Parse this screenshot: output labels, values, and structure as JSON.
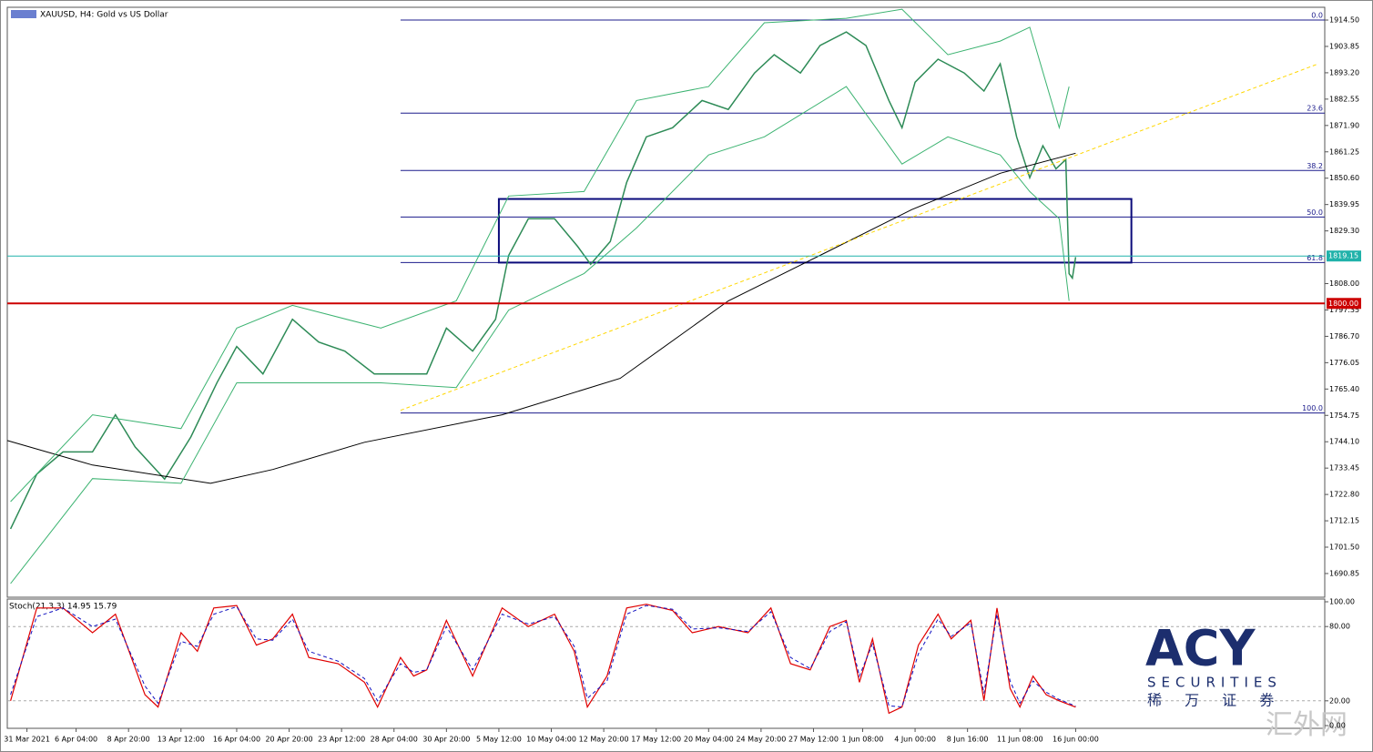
{
  "chart_data": [
    {
      "type": "line",
      "title": "XAUUSD, H4:  Gold vs US Dollar",
      "xlim": [
        0,
        402
      ],
      "xticks": [
        {
          "value": 6,
          "label": "31 Mar 2021"
        },
        {
          "value": 21,
          "label": "6 Apr 04:00"
        },
        {
          "value": 37,
          "label": "8 Apr 20:00"
        },
        {
          "value": 53,
          "label": "13 Apr 12:00"
        },
        {
          "value": 70,
          "label": "16 Apr 04:00"
        },
        {
          "value": 86,
          "label": "20 Apr 20:00"
        },
        {
          "value": 102,
          "label": "23 Apr 12:00"
        },
        {
          "value": 118,
          "label": "28 Apr 04:00"
        },
        {
          "value": 134,
          "label": "30 Apr 20:00"
        },
        {
          "value": 150,
          "label": "5 May 12:00"
        },
        {
          "value": 166,
          "label": "10 May 04:00"
        },
        {
          "value": 182,
          "label": "12 May 20:00"
        },
        {
          "value": 198,
          "label": "17 May 12:00"
        },
        {
          "value": 214,
          "label": "20 May 04:00"
        },
        {
          "value": 230,
          "label": "24 May 20:00"
        },
        {
          "value": 246,
          "label": "27 May 12:00"
        },
        {
          "value": 261,
          "label": "1 Jun 08:00"
        },
        {
          "value": 277,
          "label": "4 Jun 00:00"
        },
        {
          "value": 293,
          "label": "8 Jun 16:00"
        },
        {
          "value": 309,
          "label": "11 Jun 08:00"
        },
        {
          "value": 326,
          "label": "16 Jun 00:00"
        }
      ],
      "ylim": [
        1681.27,
        1919.66
      ],
      "yticks": [
        {
          "value": 1914.5,
          "label": "1914.50"
        },
        1903.85,
        {
          "value": 1893.2,
          "label": "1893.20"
        },
        1882.55,
        {
          "value": 1871.9,
          "label": "1871.90"
        },
        1861.25,
        {
          "value": 1850.6,
          "label": "1850.60"
        },
        1839.95,
        {
          "value": 1829.3,
          "label": "1829.30"
        },
        {
          "value": 1808,
          "label": "1808.00"
        },
        1797.35,
        {
          "value": 1786.7,
          "label": "1786.70"
        },
        1776.05,
        {
          "value": 1765.4,
          "label": "1765.40"
        },
        1754.75,
        {
          "value": 1744.1,
          "label": "1744.10"
        },
        1733.45,
        {
          "value": 1722.8,
          "label": "1722.80"
        },
        1712.15,
        {
          "value": 1701.5,
          "label": "1701.50"
        },
        1690.85
      ],
      "series": [
        {
          "color": "#2e8b57",
          "width": 1.5,
          "x": [
            1,
            9,
            17,
            26,
            33,
            39,
            48,
            56,
            64,
            70,
            78,
            87,
            95,
            103,
            112,
            120,
            128,
            134,
            142,
            149,
            153,
            159,
            167,
            174,
            178,
            184,
            189,
            195,
            203,
            212,
            220,
            228,
            234,
            242,
            248,
            256,
            262,
            269,
            273,
            277,
            284,
            292,
            298,
            303,
            308,
            312,
            316,
            320,
            323,
            324,
            325,
            326
          ],
          "values": [
            1708.9,
            1731,
            1740,
            1740,
            1755,
            1742,
            1729,
            1746,
            1768,
            1782.6,
            1771.5,
            1793.6,
            1784.4,
            1780.7,
            1771.5,
            1771.5,
            1771.5,
            1790,
            1780.7,
            1793.6,
            1819.4,
            1834.2,
            1834.2,
            1823.1,
            1815.8,
            1825,
            1848.9,
            1867.3,
            1871,
            1882,
            1878.4,
            1893.1,
            1900.5,
            1893.1,
            1904.2,
            1909.7,
            1904.2,
            1882,
            1871,
            1889.4,
            1898.7,
            1893.1,
            1885.8,
            1896.8,
            1867.3,
            1850.8,
            1863.7,
            1854.4,
            1858.1,
            1812,
            1810.2,
            1818.7
          ]
        },
        {
          "color": "#000000",
          "width": 1,
          "x": [
            0,
            26,
            62,
            81,
            109,
            151,
            187,
            220,
            248,
            276,
            303,
            326
          ],
          "values": [
            1744.6,
            1734.7,
            1727.3,
            1732.9,
            1743.9,
            1755,
            1769.7,
            1801,
            1819.4,
            1837.9,
            1852.6,
            1860.7
          ]
        },
        {
          "color": "#3cb371",
          "width": 1,
          "x": [
            1,
            26,
            53,
            70,
            87,
            114,
            137,
            153,
            176,
            192,
            214,
            231,
            256,
            273,
            287,
            303,
            312,
            321,
            324
          ],
          "values": [
            1719.9,
            1755,
            1749.4,
            1790,
            1799.2,
            1790,
            1801,
            1843.4,
            1845.2,
            1882,
            1887.6,
            1913.4,
            1915.2,
            1918.9,
            1900.5,
            1906,
            1911.6,
            1871,
            1887.6
          ]
        },
        {
          "color": "#3cb371",
          "width": 1,
          "x": [
            1,
            26,
            53,
            70,
            87,
            114,
            137,
            153,
            176,
            192,
            214,
            231,
            256,
            273,
            287,
            303,
            312,
            321,
            324
          ],
          "values": [
            1686.8,
            1729.2,
            1727.3,
            1767.9,
            1767.9,
            1767.9,
            1766,
            1797.3,
            1812.1,
            1830.5,
            1860,
            1867.3,
            1887.6,
            1856.3,
            1867.3,
            1860,
            1845.2,
            1834.2,
            1801
          ]
        },
        {
          "color": "#ffd700",
          "width": 1,
          "dashed": true,
          "x": [
            120,
            400
          ],
          "values": [
            1756.8,
            1896.8
          ]
        }
      ],
      "fib_color": "#1c1c8c",
      "fib_start": 120,
      "fib_levels": [
        {
          "label": "0.0",
          "value": 1914.5
        },
        {
          "label": "23.6",
          "value": 1876.9
        },
        {
          "label": "38.2",
          "value": 1853.7
        },
        {
          "label": "50.0",
          "value": 1834.9
        },
        {
          "label": "61.8",
          "value": 1816.5
        },
        {
          "label": "100.0",
          "value": 1755.7
        }
      ],
      "box": {
        "x": [
          150,
          343
        ],
        "y": [
          1816.5,
          1842.2
        ],
        "color": "#0a0a7a"
      },
      "price_lines": [
        {
          "value": 1819.15,
          "label": "1819.15",
          "color": "#20b2aa"
        },
        {
          "value": 1800,
          "label": "1800.00",
          "color": "#cc0000"
        }
      ]
    },
    {
      "type": "line",
      "title": "Stoch(21,3,3) 14.95 15.79",
      "xlim": [
        0,
        402
      ],
      "ylim": [
        -2.2,
        102.2
      ],
      "yticks": [
        {
          "value": 100,
          "label": "100.00"
        },
        {
          "value": 80,
          "label": "80.00"
        },
        {
          "value": 20,
          "label": "20.00"
        },
        {
          "value": 0,
          "label": "0.00"
        }
      ],
      "levels": [
        80,
        20
      ],
      "series": [
        {
          "color": "#e00000",
          "width": 1.2,
          "x": [
            1,
            9,
            17,
            26,
            33,
            42,
            46,
            53,
            58,
            63,
            70,
            76,
            81,
            87,
            92,
            101,
            109,
            113,
            120,
            124,
            128,
            134,
            142,
            151,
            159,
            167,
            173,
            177,
            183,
            189,
            195,
            203,
            209,
            217,
            226,
            233,
            239,
            245,
            251,
            256,
            260,
            264,
            269,
            273,
            278,
            284,
            288,
            294,
            298,
            302,
            306,
            309,
            313,
            317,
            321,
            326
          ],
          "values": [
            20,
            95,
            95,
            75,
            90,
            25,
            15,
            75,
            60,
            95,
            97,
            65,
            70,
            90,
            55,
            50,
            35,
            15,
            55,
            40,
            45,
            85,
            40,
            95,
            80,
            90,
            60,
            15,
            40,
            95,
            98,
            93,
            75,
            80,
            75,
            95,
            50,
            45,
            80,
            85,
            35,
            70,
            10,
            15,
            65,
            90,
            70,
            85,
            20,
            95,
            30,
            15,
            40,
            25,
            20,
            14.95
          ]
        },
        {
          "color": "#1010c0",
          "width": 1,
          "dashed": true,
          "x": [
            1,
            9,
            17,
            26,
            33,
            42,
            46,
            53,
            58,
            63,
            70,
            76,
            81,
            87,
            92,
            101,
            109,
            113,
            120,
            124,
            128,
            134,
            142,
            151,
            159,
            167,
            173,
            177,
            183,
            189,
            195,
            203,
            209,
            217,
            226,
            233,
            239,
            245,
            251,
            256,
            260,
            264,
            269,
            273,
            278,
            284,
            288,
            294,
            298,
            302,
            306,
            309,
            313,
            317,
            321,
            326
          ],
          "values": [
            25,
            88,
            95,
            80,
            86,
            32,
            18,
            68,
            64,
            90,
            96,
            70,
            69,
            86,
            60,
            52,
            38,
            20,
            50,
            43,
            45,
            80,
            45,
            90,
            82,
            88,
            64,
            22,
            36,
            90,
            97,
            94,
            78,
            79,
            76,
            92,
            55,
            46,
            76,
            84,
            40,
            66,
            16,
            15,
            58,
            86,
            72,
            83,
            26,
            90,
            36,
            18,
            36,
            27,
            21,
            15.79
          ]
        }
      ]
    }
  ],
  "branding": {
    "logo": "ACY",
    "subtitle": "SECURITIES",
    "chinese": "稀 万 证 券",
    "watermark": "汇外网"
  }
}
